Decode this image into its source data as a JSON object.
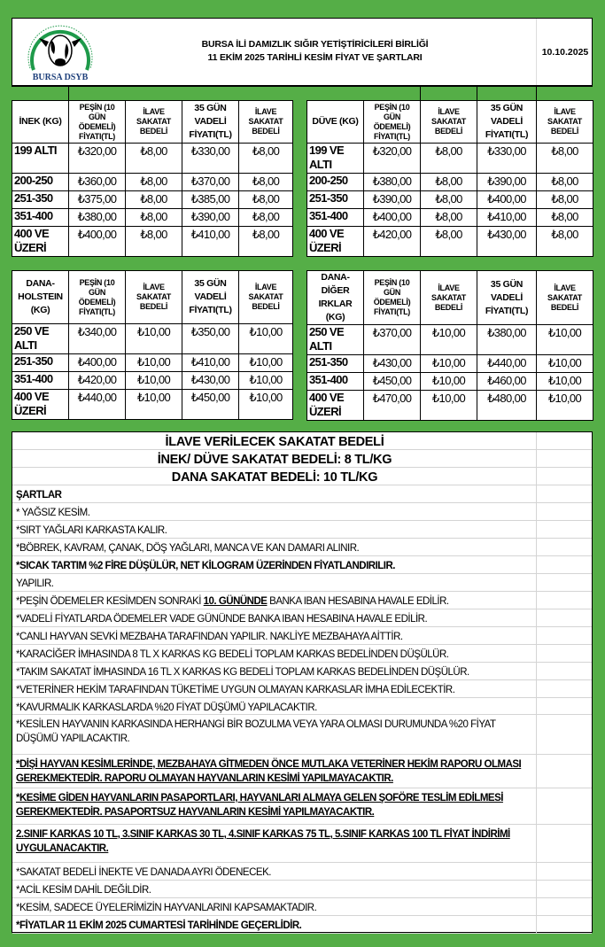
{
  "colors": {
    "background": "#55ae47",
    "logo_green": "#1e9a4a",
    "logo_text": "#1d3f7a"
  },
  "header": {
    "logo_text": "BURSA DSYB",
    "logo_ring_text": "BURSA İLİ DAMIZLIK SIĞIR YETİŞTİRİCİLERİ BİRLİĞİ",
    "title_line1": "BURSA İLİ DAMIZLIK SIĞIR YETİŞTİRİCİLERİ BİRLİĞİ",
    "title_line2": "11 EKİM 2025 TARİHLİ KESİM FİYAT VE ŞARTLARI",
    "date": "10.10.2025"
  },
  "tables": [
    {
      "headers": [
        "İNEK (KG)",
        "PEŞİN (10 GÜN ÖDEMELİ) FİYATI(TL)",
        "İLAVE SAKATAT BEDELİ",
        "35 GÜN VADELİ FİYATI(TL)",
        "İLAVE SAKATAT BEDELİ"
      ],
      "rows": [
        [
          "199 ALTI",
          "₺320,00",
          "₺8,00",
          "₺330,00",
          "₺8,00"
        ],
        [
          "200-250",
          "₺360,00",
          "₺8,00",
          "₺370,00",
          "₺8,00"
        ],
        [
          "251-350",
          "₺375,00",
          "₺8,00",
          "₺385,00",
          "₺8,00"
        ],
        [
          "351-400",
          "₺380,00",
          "₺8,00",
          "₺390,00",
          "₺8,00"
        ],
        [
          "400 VE ÜZERİ",
          "₺400,00",
          "₺8,00",
          "₺410,00",
          "₺8,00"
        ]
      ]
    },
    {
      "headers": [
        "DÜVE (KG)",
        "PEŞİN (10 GÜN ÖDEMELİ) FİYATI(TL)",
        "İLAVE SAKATAT BEDELİ",
        "35 GÜN VADELİ FİYATI(TL)",
        "İLAVE SAKATAT BEDELİ"
      ],
      "rows": [
        [
          "199 VE ALTI",
          "₺320,00",
          "₺8,00",
          "₺330,00",
          "₺8,00"
        ],
        [
          "200-250",
          "₺380,00",
          "₺8,00",
          "₺390,00",
          "₺8,00"
        ],
        [
          "251-350",
          "₺390,00",
          "₺8,00",
          "₺400,00",
          "₺8,00"
        ],
        [
          "351-400",
          "₺400,00",
          "₺8,00",
          "₺410,00",
          "₺8,00"
        ],
        [
          "400 VE ÜZERİ",
          "₺420,00",
          "₺8,00",
          "₺430,00",
          "₺8,00"
        ]
      ]
    },
    {
      "headers": [
        "DANA-HOLSTEIN (KG)",
        "PEŞİN (10 GÜN ÖDEMELİ) FİYATI(TL)",
        "İLAVE SAKATAT BEDELİ",
        "35 GÜN VADELİ FİYATI(TL)",
        "İLAVE SAKATAT BEDELİ"
      ],
      "rows": [
        [
          "250 VE ALTI",
          "₺340,00",
          "₺10,00",
          "₺350,00",
          "₺10,00"
        ],
        [
          "251-350",
          "₺400,00",
          "₺10,00",
          "₺410,00",
          "₺10,00"
        ],
        [
          "351-400",
          "₺420,00",
          "₺10,00",
          "₺430,00",
          "₺10,00"
        ],
        [
          "400 VE ÜZERİ",
          "₺440,00",
          "₺10,00",
          "₺450,00",
          "₺10,00"
        ]
      ]
    },
    {
      "headers": [
        "DANA-DİĞER IRKLAR (KG)",
        "PEŞİN (10 GÜN ÖDEMELİ) FİYATI(TL)",
        "İLAVE SAKATAT BEDELİ",
        "35 GÜN VADELİ FİYATI(TL)",
        "İLAVE SAKATAT BEDELİ"
      ],
      "rows": [
        [
          "250 VE ALTI",
          "₺370,00",
          "₺10,00",
          "₺380,00",
          "₺10,00"
        ],
        [
          "251-350",
          "₺430,00",
          "₺10,00",
          "₺440,00",
          "₺10,00"
        ],
        [
          "351-400",
          "₺450,00",
          "₺10,00",
          "₺460,00",
          "₺10,00"
        ],
        [
          "400 VE ÜZERİ",
          "₺470,00",
          "₺10,00",
          "₺480,00",
          "₺10,00"
        ]
      ]
    }
  ],
  "conditions": [
    {
      "text": "İLAVE VERİLECEK SAKATAT BEDELİ",
      "style": "center"
    },
    {
      "text": "İNEK/ DÜVE SAKATAT BEDELİ: 8 TL/KG",
      "style": "center"
    },
    {
      "text": "DANA SAKATAT BEDELİ: 10 TL/KG",
      "style": "center"
    },
    {
      "text": "ŞARTLAR",
      "style": "bold"
    },
    {
      "text": "* YAĞSIZ KESİM.",
      "style": ""
    },
    {
      "text": "*SIRT YAĞLARI KARKASTA KALIR.",
      "style": ""
    },
    {
      "text": "*BÖBREK, KAVRAM, ÇANAK, DÖŞ YAĞLARI, MANCA VE KAN DAMARI ALINIR.",
      "style": ""
    },
    {
      "text": "*SICAK TARTIM %2 FİRE DÜŞÜLÜR, NET KİLOGRAM ÜZERİNDEN FİYATLANDIRILIR.",
      "style": "bold"
    },
    {
      "text": "YAPILIR.",
      "style": ""
    },
    {
      "text": "*PEŞİN ÖDEMELER KESİMDEN SONRAKİ ",
      "emphasis": "10. GÜNÜNDE",
      "text_after": " BANKA IBAN HESABINA HAVALE EDİLİR.",
      "style": ""
    },
    {
      "text": "*VADELİ FİYATLARDA ÖDEMELER VADE GÜNÜNDE BANKA IBAN HESABINA HAVALE EDİLİR.",
      "style": ""
    },
    {
      "text": "*CANLI HAYVAN SEVKİ MEZBAHA TARAFINDAN YAPILIR. NAKLİYE MEZBAHAYA AİTTİR.",
      "style": ""
    },
    {
      "text": "*KARACİĞER İMHASINDA 8 TL X KARKAS KG BEDELİ TOPLAM KARKAS BEDELİNDEN DÜŞÜLÜR.",
      "style": ""
    },
    {
      "text": "*TAKIM SAKATAT İMHASINDA 16 TL X KARKAS KG BEDELİ TOPLAM KARKAS BEDELİNDEN DÜŞÜLÜR.",
      "style": ""
    },
    {
      "text": "*VETERİNER HEKİM TARAFINDAN TÜKETİME UYGUN OLMAYAN KARKASLAR İMHA EDİLECEKTİR.",
      "style": ""
    },
    {
      "text": "*KAVURMALIK KARKASLARDA %20 FİYAT DÜŞÜMÜ YAPILACAKTIR.",
      "style": ""
    },
    {
      "text": "*KESİLEN HAYVANIN KARKASINDA HERHANGİ BİR BOZULMA VEYA YARA OLMASI DURUMUNDA %20 FİYAT DÜŞÜMÜ YAPILACAKTIR.",
      "style": "two"
    },
    {
      "text": "*DİŞİ HAYVAN KESİMLERİNDE, MEZBAHAYA GİTMEDEN ÖNCE MUTLAKA VETERİNER HEKİM RAPORU OLMASI GEREKMEKTEDİR. RAPORU OLMAYAN HAYVANLARIN KESİMİ YAPILMAYACAKTIR.",
      "style": "bold ul two"
    },
    {
      "text": "*KESİME GİDEN HAYVANLARIN PASAPORTLARI, HAYVANLARI ALMAYA GELEN ŞOFÖRE TESLİM EDİLMESİ GEREKMEKTEDİR. PASAPORTSUZ HAYVANLARIN KESİMİ YAPILMAYACAKTIR.",
      "style": "bold ul two"
    },
    {
      "text": "2.SINIF KARKAS 10 TL, 3.SINIF KARKAS 30 TL, 4.SINIF KARKAS 75 TL, 5.SINIF KARKAS 100 TL FİYAT İNDİRİMİ UYGULANACAKTIR.",
      "style": "bold ul two"
    },
    {
      "text": "*SAKATAT BEDELİ İNEKTE VE DANADA AYRI ÖDENECEK.",
      "style": ""
    },
    {
      "text": "*ACİL KESİM DAHİL DEĞİLDİR.",
      "style": ""
    },
    {
      "text": "*KESİM, SADECE ÜYELERİMİZİN HAYVANLARINI KAPSAMAKTADIR.",
      "style": ""
    },
    {
      "text": "*FİYATLAR 11 EKİM 2025 CUMARTESİ TARİHİNDE GEÇERLİDİR.",
      "style": "bold"
    }
  ]
}
